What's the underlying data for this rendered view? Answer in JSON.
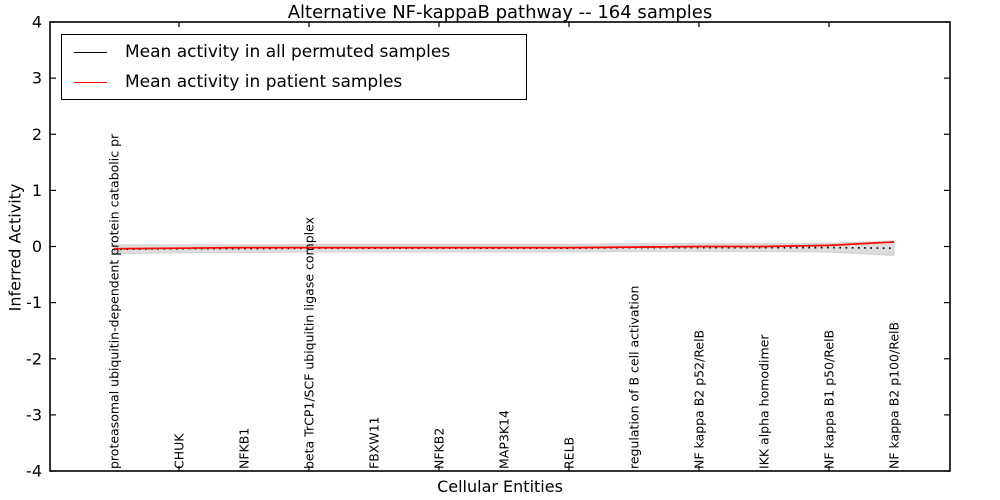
{
  "chart_data": {
    "type": "line",
    "title": "Alternative NF-kappaB pathway -- 164 samples",
    "xlabel": "Cellular Entities",
    "ylabel": "Inferred Activity",
    "ylim": [
      -4,
      4
    ],
    "yticks": [
      4,
      3,
      2,
      1,
      0,
      -1,
      -2,
      -3,
      -4
    ],
    "grid": false,
    "legend_position": "upper left",
    "categories": [
      "proteasomal ubiquitin-dependent protein catabolic pr",
      "CHUK",
      "NFKB1",
      "beta TrCP1/SCF ubiquitin ligase complex",
      "FBXW11",
      "NFKB2",
      "MAP3K14",
      "RELB",
      "regulation of B cell activation",
      "NF kappa B2 p52/RelB",
      "IKK alpha homodimer",
      "NF kappa B1 p50/RelB",
      "NF kappa B2 p100/RelB"
    ],
    "series": [
      {
        "name": "Mean activity in all permuted samples",
        "color": "#000000",
        "style": "dotted",
        "values": [
          -0.05,
          -0.04,
          -0.04,
          -0.03,
          -0.03,
          -0.03,
          -0.03,
          -0.03,
          -0.02,
          -0.02,
          -0.02,
          -0.02,
          -0.03
        ]
      },
      {
        "name": "Mean activity in patient samples",
        "color": "#ff0000",
        "style": "solid",
        "values": [
          -0.04,
          -0.03,
          -0.02,
          -0.02,
          -0.02,
          -0.02,
          -0.02,
          -0.02,
          -0.01,
          0.0,
          0.0,
          0.02,
          0.08
        ]
      }
    ],
    "band": {
      "description": "std-dev band around permuted mean",
      "color": "#dcdcdc",
      "half_widths": [
        0.08,
        0.07,
        0.07,
        0.07,
        0.07,
        0.07,
        0.07,
        0.07,
        0.07,
        0.07,
        0.07,
        0.08,
        0.13
      ]
    }
  }
}
